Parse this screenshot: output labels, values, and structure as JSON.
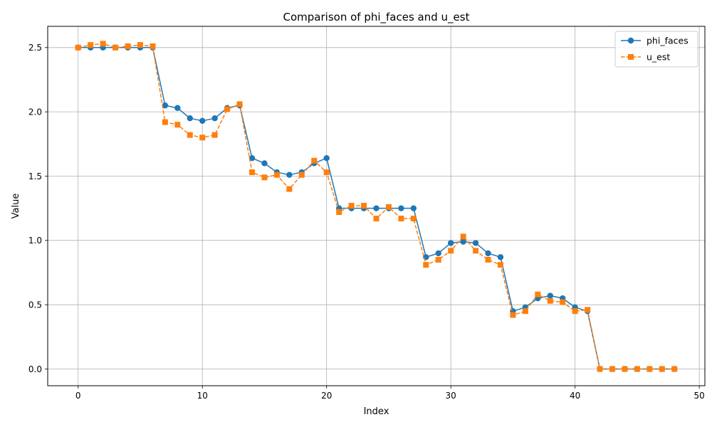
{
  "chart_data": {
    "type": "line",
    "title": "Comparison of phi_faces and u_est",
    "xlabel": "Index",
    "ylabel": "Value",
    "xlim": [
      -2.45,
      50.45
    ],
    "ylim": [
      -0.13,
      2.665
    ],
    "xticks": [
      0,
      10,
      20,
      30,
      40,
      50
    ],
    "yticks": [
      0.0,
      0.5,
      1.0,
      1.5,
      2.0,
      2.5
    ],
    "xtick_labels": [
      "0",
      "10",
      "20",
      "30",
      "40",
      "50"
    ],
    "ytick_labels": [
      "0.0",
      "0.5",
      "1.0",
      "1.5",
      "2.0",
      "2.5"
    ],
    "grid": true,
    "legend_position": "upper right",
    "x": [
      0,
      1,
      2,
      3,
      4,
      5,
      6,
      7,
      8,
      9,
      10,
      11,
      12,
      13,
      14,
      15,
      16,
      17,
      18,
      19,
      20,
      21,
      22,
      23,
      24,
      25,
      26,
      27,
      28,
      29,
      30,
      31,
      32,
      33,
      34,
      35,
      36,
      37,
      38,
      39,
      40,
      41,
      42,
      43,
      44,
      45,
      46,
      47,
      48
    ],
    "series": [
      {
        "name": "phi_faces",
        "color": "#1f77b4",
        "marker": "circle",
        "linestyle": "solid",
        "values": [
          2.5,
          2.5,
          2.5,
          2.5,
          2.5,
          2.5,
          2.5,
          2.05,
          2.03,
          1.95,
          1.93,
          1.95,
          2.03,
          2.05,
          1.64,
          1.6,
          1.53,
          1.51,
          1.53,
          1.6,
          1.64,
          1.25,
          1.25,
          1.25,
          1.25,
          1.25,
          1.25,
          1.25,
          0.87,
          0.9,
          0.98,
          0.99,
          0.98,
          0.9,
          0.87,
          0.45,
          0.48,
          0.55,
          0.57,
          0.55,
          0.48,
          0.45,
          0.0,
          0.0,
          0.0,
          0.0,
          0.0,
          0.0,
          0.0
        ]
      },
      {
        "name": "u_est",
        "color": "#ff7f0e",
        "marker": "square",
        "linestyle": "dashed",
        "values": [
          2.5,
          2.52,
          2.53,
          2.5,
          2.51,
          2.52,
          2.51,
          1.92,
          1.9,
          1.82,
          1.8,
          1.82,
          2.02,
          2.06,
          1.53,
          1.49,
          1.51,
          1.4,
          1.51,
          1.62,
          1.53,
          1.22,
          1.27,
          1.27,
          1.17,
          1.26,
          1.17,
          1.17,
          0.81,
          0.85,
          0.92,
          1.03,
          0.92,
          0.85,
          0.81,
          0.42,
          0.45,
          0.58,
          0.53,
          0.52,
          0.45,
          0.46,
          0.0,
          0.0,
          0.0,
          0.0,
          0.0,
          0.0,
          0.0
        ]
      }
    ]
  }
}
